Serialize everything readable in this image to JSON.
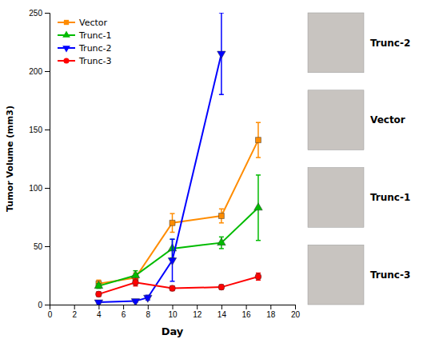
{
  "chart_data": {
    "type": "line",
    "xlabel": "Day",
    "ylabel": "Tumor Volume (mm3)",
    "xlim": [
      0,
      20
    ],
    "ylim": [
      0,
      250
    ],
    "xticks": [
      0,
      2,
      4,
      6,
      8,
      10,
      12,
      14,
      16,
      18,
      20
    ],
    "yticks": [
      0,
      50,
      100,
      150,
      200,
      250
    ],
    "grid": false,
    "legend": "upper left",
    "series": [
      {
        "name": "Vector",
        "color": "#FF8C00",
        "marker": "square",
        "x": [
          4,
          7,
          10,
          14,
          17
        ],
        "values": [
          18,
          23,
          70,
          76,
          141
        ],
        "errors": [
          3,
          4,
          8,
          6,
          15
        ]
      },
      {
        "name": "Trunc-1",
        "color": "#00BB00",
        "marker": "triangle-up",
        "x": [
          4,
          7,
          10,
          14,
          17
        ],
        "values": [
          16,
          25,
          48,
          53,
          83
        ],
        "errors": [
          2,
          4,
          8,
          5,
          28
        ]
      },
      {
        "name": "Trunc-2",
        "color": "#0000FF",
        "marker": "triangle-down",
        "x": [
          4,
          7,
          8,
          10,
          14
        ],
        "values": [
          2,
          3,
          6,
          38,
          215
        ],
        "errors": [
          1,
          1,
          2,
          18,
          35
        ]
      },
      {
        "name": "Trunc-3",
        "color": "#FF0000",
        "marker": "circle",
        "x": [
          4,
          7,
          10,
          14,
          17
        ],
        "values": [
          9,
          19,
          14,
          15,
          24
        ],
        "errors": [
          2,
          3,
          2,
          2,
          3
        ]
      }
    ],
    "annotations": [
      "Trunc-2",
      "Vector",
      "Trunc-1",
      "Trunc-3"
    ]
  }
}
